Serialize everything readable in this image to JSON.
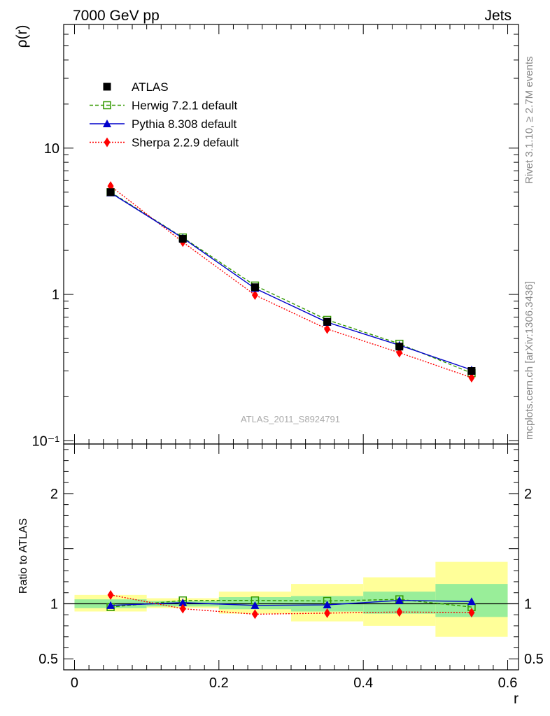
{
  "header": {
    "left": "7000 GeV pp",
    "right": "Jets"
  },
  "side_labels": {
    "rivet": "Rivet 3.1.10, ≥ 2.7M events",
    "mcplots": "mcplots.cern.ch [arXiv:1306.3436]"
  },
  "watermark": "ATLAS_2011_S8924791",
  "chart_data": [
    {
      "type": "line",
      "panel": "main",
      "ylabel": "ρ(r)",
      "yscale": "log",
      "xlim": [
        -0.015,
        0.615
      ],
      "ylim": [
        0.095,
        70
      ],
      "y_tick_labels": [
        "10⁻¹",
        "1",
        "10"
      ],
      "legend_position": "top-left",
      "x": [
        0.05,
        0.15,
        0.25,
        0.35,
        0.45,
        0.55
      ],
      "series": [
        {
          "name": "ATLAS",
          "color": "#000000",
          "values": [
            5.0,
            2.4,
            1.12,
            0.65,
            0.44,
            0.3
          ]
        },
        {
          "name": "Herwig 7.2.1 default",
          "color": "#339900",
          "values": [
            5.0,
            2.45,
            1.15,
            0.67,
            0.46,
            0.29
          ]
        },
        {
          "name": "Pythia 8.308 default",
          "color": "#0000cc",
          "values": [
            4.95,
            2.43,
            1.1,
            0.645,
            0.45,
            0.305
          ]
        },
        {
          "name": "Sherpa 2.2.9 default",
          "color": "#ff0000",
          "values": [
            5.5,
            2.28,
            0.99,
            0.58,
            0.4,
            0.27
          ]
        }
      ]
    },
    {
      "type": "line",
      "panel": "ratio",
      "xlabel": "r",
      "ylabel": "Ratio to ATLAS",
      "xlim": [
        -0.015,
        0.615
      ],
      "ylim": [
        0.4,
        2.45
      ],
      "x_tick_labels": [
        "0",
        "0.2",
        "0.4",
        "0.6"
      ],
      "y_tick_labels": [
        "0.5",
        "1",
        "2"
      ],
      "bands": [
        {
          "x0": 0.0,
          "x1": 0.1,
          "inner": [
            0.96,
            1.04
          ],
          "outer": [
            0.93,
            1.08
          ]
        },
        {
          "x0": 0.1,
          "x1": 0.2,
          "inner": [
            0.975,
            1.025
          ],
          "outer": [
            0.96,
            1.05
          ]
        },
        {
          "x0": 0.2,
          "x1": 0.3,
          "inner": [
            0.95,
            1.06
          ],
          "outer": [
            0.91,
            1.11
          ]
        },
        {
          "x0": 0.3,
          "x1": 0.4,
          "inner": [
            0.93,
            1.07
          ],
          "outer": [
            0.84,
            1.18
          ]
        },
        {
          "x0": 0.4,
          "x1": 0.5,
          "inner": [
            0.91,
            1.11
          ],
          "outer": [
            0.8,
            1.24
          ]
        },
        {
          "x0": 0.5,
          "x1": 0.6,
          "inner": [
            0.88,
            1.18
          ],
          "outer": [
            0.7,
            1.38
          ]
        }
      ],
      "x": [
        0.05,
        0.15,
        0.25,
        0.35,
        0.45,
        0.55
      ],
      "series": [
        {
          "name": "Herwig 7.2.1 default",
          "color": "#339900",
          "values": [
            0.97,
            1.03,
            1.03,
            1.025,
            1.04,
            0.97
          ]
        },
        {
          "name": "Pythia 8.308 default",
          "color": "#0000cc",
          "values": [
            0.985,
            1.01,
            0.985,
            0.99,
            1.03,
            1.02
          ]
        },
        {
          "name": "Sherpa 2.2.9 default",
          "color": "#ff0000",
          "values": [
            1.08,
            0.955,
            0.905,
            0.915,
            0.925,
            0.92
          ]
        }
      ]
    }
  ]
}
